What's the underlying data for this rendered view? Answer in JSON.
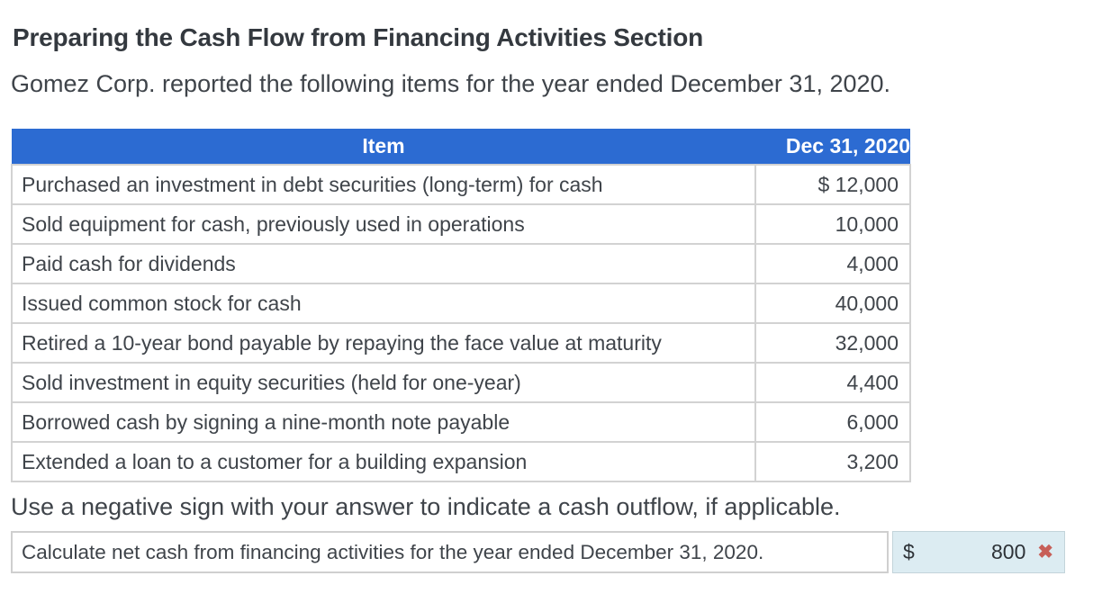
{
  "page": {
    "title": "Preparing the Cash Flow from Financing Activities Section",
    "intro": "Gomez Corp. reported the following items for the year ended December 31, 2020.",
    "instruction": "Use a negative sign with your answer to indicate a cash outflow, if applicable."
  },
  "table": {
    "headers": {
      "item": "Item",
      "date": "Dec 31, 2020"
    },
    "rows": [
      {
        "item": "Purchased an investment in debt securities (long-term) for cash",
        "value": "$ 12,000"
      },
      {
        "item": "Sold equipment for cash, previously used in operations",
        "value": "10,000"
      },
      {
        "item": "Paid cash for dividends",
        "value": "4,000"
      },
      {
        "item": "Issued common stock for cash",
        "value": "40,000"
      },
      {
        "item": "Retired a 10-year bond payable by repaying the face value at maturity",
        "value": "32,000"
      },
      {
        "item": "Sold investment in equity securities (held for one-year)",
        "value": "4,400"
      },
      {
        "item": "Borrowed cash by signing a nine-month note payable",
        "value": "6,000"
      },
      {
        "item": "Extended a loan to a customer for a building expansion",
        "value": "3,200"
      }
    ]
  },
  "answer": {
    "prompt": "Calculate net cash from financing activities for the year ended December 31, 2020.",
    "currency_symbol": "$",
    "value": "800",
    "status": "incorrect",
    "status_glyph": "✖"
  },
  "colors": {
    "header_bg": "#2c6bd2",
    "header_text": "#ffffff",
    "table_border": "#d2d2d2",
    "answer_field_bg": "#dcecf2",
    "incorrect_icon": "#c75f58",
    "body_text": "#3f444a"
  }
}
